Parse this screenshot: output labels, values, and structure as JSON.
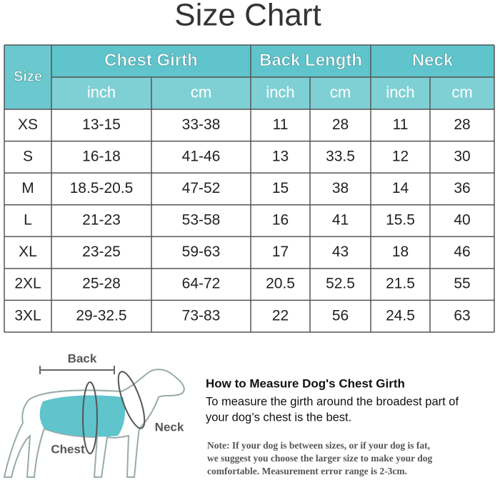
{
  "header": {
    "title": "Size Chart"
  },
  "table": {
    "corner": "Size",
    "groups": [
      "Chest Girth",
      "Back Length",
      "Neck"
    ],
    "units": [
      "inch",
      "cm",
      "inch",
      "cm",
      "inch",
      "cm"
    ],
    "rows": [
      [
        "XS",
        "13-15",
        "33-38",
        "11",
        "28",
        "11",
        "28"
      ],
      [
        "S",
        "16-18",
        "41-46",
        "13",
        "33.5",
        "12",
        "30"
      ],
      [
        "M",
        "18.5-20.5",
        "47-52",
        "15",
        "38",
        "14",
        "36"
      ],
      [
        "L",
        "21-23",
        "53-58",
        "16",
        "41",
        "15.5",
        "40"
      ],
      [
        "XL",
        "23-25",
        "59-63",
        "17",
        "43",
        "18",
        "46"
      ],
      [
        "2XL",
        "25-28",
        "64-72",
        "20.5",
        "52.5",
        "21.5",
        "55"
      ],
      [
        "3XL",
        "29-32.5",
        "73-83",
        "22",
        "56",
        "24.5",
        "63"
      ]
    ]
  },
  "illustration": {
    "labels": [
      "Back",
      "Neck",
      "Chest"
    ]
  },
  "guide": {
    "heading": "How to Measure Dog's Chest Girth",
    "body": [
      "To measure the girth around the broadest part of",
      "your dog’s chest is the best."
    ],
    "note": [
      "Note: If your dog is between sizes, or if your dog is fat,",
      "we suggest you choose the larger size to make your dog",
      "comfortable. Measurement error range is 2-3cm."
    ]
  }
}
